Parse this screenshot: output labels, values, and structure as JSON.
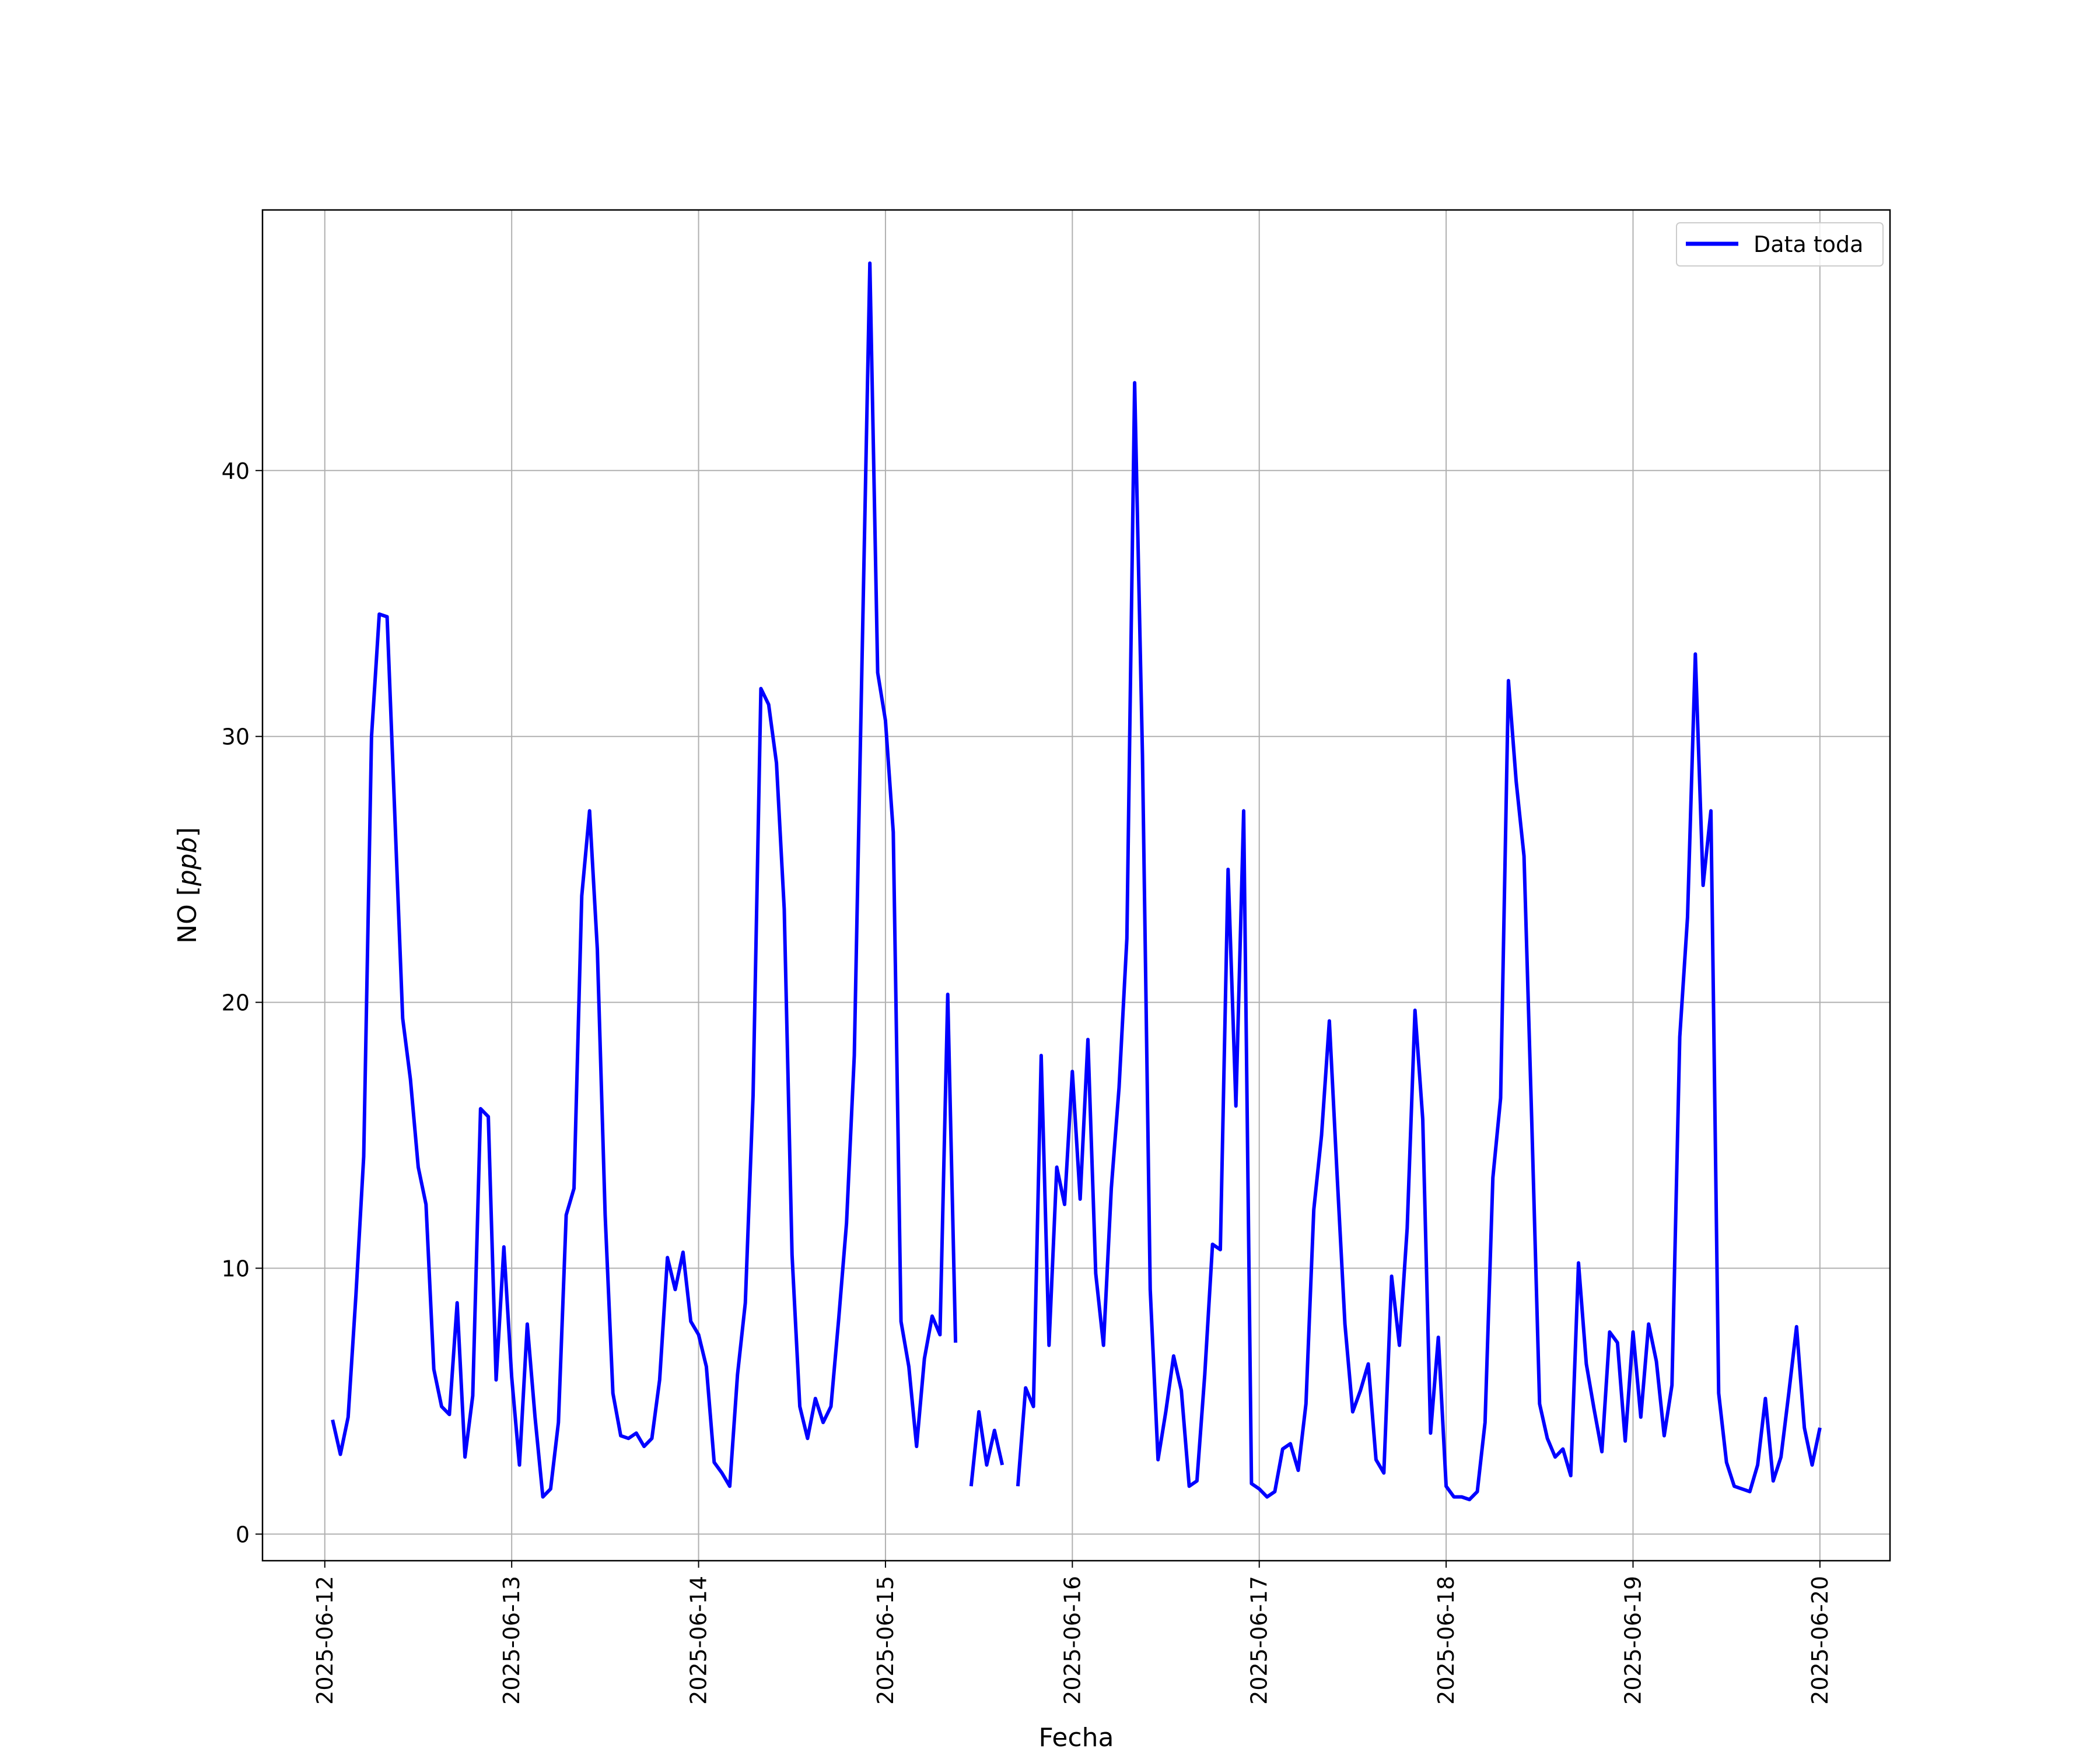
{
  "chart_data": {
    "type": "line",
    "title": "",
    "xlabel": "Fecha",
    "ylabel_main": "NO [",
    "ylabel_italic": "ppb",
    "ylabel_end": "]",
    "xlim": [
      "2025-06-11T16:00",
      "2025-06-20T09:00"
    ],
    "ylim": [
      -1,
      49.8
    ],
    "x_ticks": [
      "2025-06-12",
      "2025-06-13",
      "2025-06-14",
      "2025-06-15",
      "2025-06-16",
      "2025-06-17",
      "2025-06-18",
      "2025-06-19",
      "2025-06-20"
    ],
    "y_ticks": [
      0,
      10,
      20,
      30,
      40
    ],
    "grid": true,
    "legend_position": "top-right",
    "series": [
      {
        "name": "Data toda",
        "color": "#0000ff",
        "start": "2025-06-12T01:00",
        "interval_hours": 1,
        "values": [
          4.3,
          3.0,
          4.4,
          9.0,
          14.2,
          30.0,
          34.6,
          34.5,
          27.0,
          19.4,
          17.1,
          13.8,
          12.4,
          6.2,
          4.8,
          4.5,
          8.7,
          2.9,
          5.2,
          16.0,
          15.7,
          5.8,
          10.8,
          5.9,
          2.6,
          7.9,
          4.4,
          1.4,
          1.7,
          4.2,
          12.0,
          13.0,
          24.0,
          27.2,
          22.0,
          12.0,
          5.3,
          3.7,
          3.6,
          3.8,
          3.3,
          3.6,
          5.8,
          10.4,
          9.2,
          10.6,
          8.0,
          7.5,
          6.3,
          2.7,
          2.3,
          1.8,
          6.0,
          8.7,
          16.5,
          31.8,
          31.2,
          29.0,
          23.5,
          10.5,
          4.8,
          3.6,
          5.1,
          4.2,
          4.8,
          8.1,
          11.7,
          18.0,
          33.0,
          47.8,
          32.4,
          30.6,
          26.4,
          8.0,
          6.3,
          3.3,
          6.6,
          8.2,
          7.5,
          20.3,
          7.2,
          null,
          1.8,
          4.6,
          2.6,
          3.9,
          2.6,
          null,
          1.8,
          5.5,
          4.8,
          18.0,
          7.1,
          13.8,
          12.4,
          17.4,
          12.6,
          18.6,
          9.8,
          7.1,
          13.0,
          16.8,
          22.4,
          43.3,
          29.3,
          9.2,
          2.8,
          4.6,
          6.7,
          5.4,
          1.8,
          2.0,
          6.0,
          10.9,
          10.7,
          25.0,
          16.1,
          27.2,
          1.9,
          1.7,
          1.4,
          1.6,
          3.2,
          3.4,
          2.4,
          4.9,
          12.2,
          15.0,
          19.3,
          13.5,
          7.9,
          4.6,
          5.4,
          6.4,
          2.8,
          2.3,
          9.7,
          7.1,
          11.5,
          19.7,
          15.6,
          3.8,
          7.4,
          1.8,
          1.4,
          1.4,
          1.3,
          1.6,
          4.2,
          13.4,
          16.4,
          32.1,
          28.3,
          25.5,
          15.5,
          4.9,
          3.6,
          2.9,
          3.2,
          2.2,
          10.2,
          6.4,
          4.7,
          3.1,
          7.6,
          7.2,
          3.5,
          7.6,
          4.4,
          7.9,
          6.5,
          3.7,
          5.6,
          18.7,
          23.2,
          33.1,
          24.4,
          27.2,
          5.3,
          2.7,
          1.8,
          1.7,
          1.6,
          2.6,
          5.1,
          2.0,
          2.9,
          5.3,
          7.8,
          4.0,
          2.6,
          4.0
        ]
      }
    ]
  }
}
